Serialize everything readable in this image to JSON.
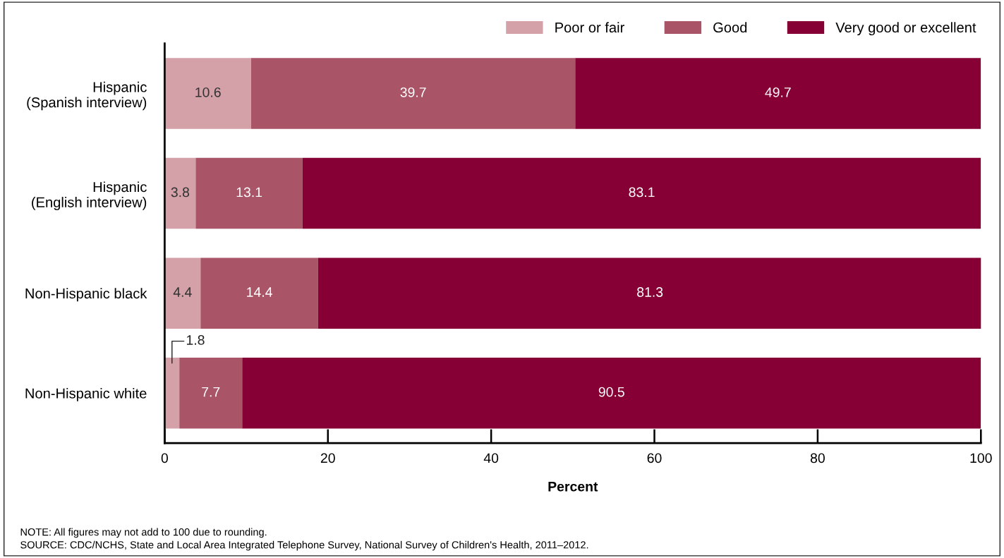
{
  "chart_data": {
    "type": "bar",
    "orientation": "horizontal",
    "stacked": true,
    "categories": [
      "Hispanic\n(Spanish interview)",
      "Hispanic\n(English interview)",
      "Non-Hispanic black",
      "Non-Hispanic white"
    ],
    "series": [
      {
        "name": "Poor or fair",
        "color": "#d4a1a9",
        "values": [
          10.6,
          3.8,
          4.4,
          1.8
        ]
      },
      {
        "name": "Good",
        "color": "#a95567",
        "values": [
          39.7,
          13.1,
          14.4,
          7.7
        ]
      },
      {
        "name": "Very good or excellent",
        "color": "#870035",
        "values": [
          49.7,
          83.1,
          81.3,
          90.5
        ]
      }
    ],
    "xlim": [
      0,
      100
    ],
    "xticks": [
      0,
      20,
      40,
      60,
      80,
      100
    ],
    "xlabel": "Percent",
    "data_labels": true,
    "legend": "top right",
    "grid": false,
    "annotations": [
      "NOTE: All figures may not add to 100 due to rounding.",
      "SOURCE: CDC/NCHS, State and Local Area Integrated Telephone Survey, National Survey of Children's Health, 2011–2012."
    ]
  }
}
